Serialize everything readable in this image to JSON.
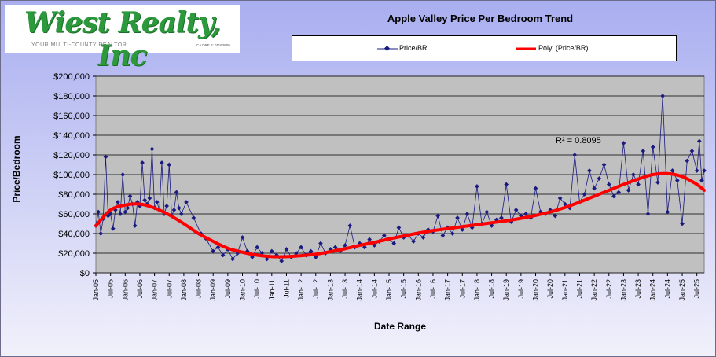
{
  "logo": {
    "name": "Wiest Realty, Inc",
    "tagline": "YOUR MULTI-COUNTY REALTOR",
    "license": "CA DRE #: 01183800"
  },
  "chart_data": {
    "type": "scatter",
    "title": "Apple Valley Price Per Bedroom Trend",
    "xlabel": "Date Range",
    "ylabel": "Price/Bedroom",
    "ylim": [
      0,
      200000
    ],
    "xlim": [
      "2005-01",
      "2025-10"
    ],
    "y_tick_labels": [
      "$0",
      "$20,000",
      "$40,000",
      "$60,000",
      "$80,000",
      "$100,000",
      "$120,000",
      "$140,000",
      "$160,000",
      "$180,000",
      "$200,000"
    ],
    "x_tick_labels": [
      "Jan-05",
      "Jul-05",
      "Jan-06",
      "Jul-06",
      "Jan-07",
      "Jul-07",
      "Jan-08",
      "Jul-08",
      "Jan-09",
      "Jul-09",
      "Jan-10",
      "Jul-10",
      "Jan-11",
      "Jul-11",
      "Jan-12",
      "Jul-12",
      "Jan-13",
      "Jul-13",
      "Jan-14",
      "Jul-14",
      "Jan-15",
      "Jul-15",
      "Jan-16",
      "Jul-16",
      "Jan-17",
      "Jul-17",
      "Jan-18",
      "Jul-18",
      "Jan-19",
      "Jul-19",
      "Jan-20",
      "Jul-20",
      "Jan-21",
      "Jul-21",
      "Jan-22",
      "Jul-22",
      "Jan-23",
      "Jul-23",
      "Jan-24",
      "Jul-24",
      "Jan-25",
      "Jul-25"
    ],
    "grid": "horizontal",
    "legend_position": "top",
    "annotation": "R² = 0.8095",
    "series": [
      {
        "name": "Price/BR",
        "color": "#1a1a80",
        "marker": "diamond",
        "points": [
          [
            "2005-01",
            48000
          ],
          [
            "2005-02",
            62000
          ],
          [
            "2005-03",
            40000
          ],
          [
            "2005-04",
            55000
          ],
          [
            "2005-05",
            118000
          ],
          [
            "2005-06",
            58000
          ],
          [
            "2005-07",
            60000
          ],
          [
            "2005-08",
            45000
          ],
          [
            "2005-09",
            64000
          ],
          [
            "2005-10",
            72000
          ],
          [
            "2005-11",
            60000
          ],
          [
            "2005-12",
            100000
          ],
          [
            "2006-01",
            62000
          ],
          [
            "2006-02",
            66000
          ],
          [
            "2006-03",
            78000
          ],
          [
            "2006-04",
            70000
          ],
          [
            "2006-05",
            48000
          ],
          [
            "2006-06",
            72000
          ],
          [
            "2006-07",
            68000
          ],
          [
            "2006-08",
            112000
          ],
          [
            "2006-09",
            74000
          ],
          [
            "2006-10",
            70000
          ],
          [
            "2006-11",
            76000
          ],
          [
            "2006-12",
            126000
          ],
          [
            "2007-01",
            66000
          ],
          [
            "2007-02",
            72000
          ],
          [
            "2007-03",
            64000
          ],
          [
            "2007-04",
            112000
          ],
          [
            "2007-05",
            60000
          ],
          [
            "2007-06",
            68000
          ],
          [
            "2007-07",
            110000
          ],
          [
            "2007-08",
            58000
          ],
          [
            "2007-09",
            64000
          ],
          [
            "2007-10",
            82000
          ],
          [
            "2007-11",
            66000
          ],
          [
            "2007-12",
            60000
          ],
          [
            "2008-02",
            72000
          ],
          [
            "2008-05",
            56000
          ],
          [
            "2008-08",
            40000
          ],
          [
            "2008-10",
            35000
          ],
          [
            "2009-01",
            22000
          ],
          [
            "2009-03",
            26000
          ],
          [
            "2009-05",
            18000
          ],
          [
            "2009-07",
            24000
          ],
          [
            "2009-09",
            14000
          ],
          [
            "2009-11",
            20000
          ],
          [
            "2010-01",
            36000
          ],
          [
            "2010-03",
            22000
          ],
          [
            "2010-05",
            16000
          ],
          [
            "2010-07",
            26000
          ],
          [
            "2010-09",
            20000
          ],
          [
            "2010-11",
            14000
          ],
          [
            "2011-01",
            22000
          ],
          [
            "2011-03",
            18000
          ],
          [
            "2011-05",
            12000
          ],
          [
            "2011-07",
            24000
          ],
          [
            "2011-09",
            16000
          ],
          [
            "2011-11",
            20000
          ],
          [
            "2012-01",
            26000
          ],
          [
            "2012-03",
            18000
          ],
          [
            "2012-05",
            22000
          ],
          [
            "2012-07",
            16000
          ],
          [
            "2012-09",
            30000
          ],
          [
            "2012-11",
            20000
          ],
          [
            "2013-01",
            24000
          ],
          [
            "2013-03",
            26000
          ],
          [
            "2013-05",
            22000
          ],
          [
            "2013-07",
            28000
          ],
          [
            "2013-09",
            48000
          ],
          [
            "2013-11",
            26000
          ],
          [
            "2014-01",
            30000
          ],
          [
            "2014-03",
            26000
          ],
          [
            "2014-05",
            34000
          ],
          [
            "2014-07",
            28000
          ],
          [
            "2014-09",
            32000
          ],
          [
            "2014-11",
            38000
          ],
          [
            "2015-01",
            34000
          ],
          [
            "2015-03",
            30000
          ],
          [
            "2015-05",
            46000
          ],
          [
            "2015-07",
            36000
          ],
          [
            "2015-09",
            38000
          ],
          [
            "2015-11",
            32000
          ],
          [
            "2016-01",
            40000
          ],
          [
            "2016-03",
            36000
          ],
          [
            "2016-05",
            44000
          ],
          [
            "2016-07",
            42000
          ],
          [
            "2016-09",
            58000
          ],
          [
            "2016-11",
            38000
          ],
          [
            "2017-01",
            46000
          ],
          [
            "2017-03",
            40000
          ],
          [
            "2017-05",
            56000
          ],
          [
            "2017-07",
            44000
          ],
          [
            "2017-09",
            60000
          ],
          [
            "2017-11",
            46000
          ],
          [
            "2018-01",
            88000
          ],
          [
            "2018-03",
            50000
          ],
          [
            "2018-05",
            62000
          ],
          [
            "2018-07",
            48000
          ],
          [
            "2018-09",
            54000
          ],
          [
            "2018-11",
            56000
          ],
          [
            "2019-01",
            90000
          ],
          [
            "2019-03",
            52000
          ],
          [
            "2019-05",
            64000
          ],
          [
            "2019-07",
            58000
          ],
          [
            "2019-09",
            60000
          ],
          [
            "2019-11",
            56000
          ],
          [
            "2020-01",
            86000
          ],
          [
            "2020-03",
            62000
          ],
          [
            "2020-05",
            60000
          ],
          [
            "2020-07",
            64000
          ],
          [
            "2020-09",
            58000
          ],
          [
            "2020-11",
            76000
          ],
          [
            "2021-01",
            70000
          ],
          [
            "2021-03",
            66000
          ],
          [
            "2021-05",
            120000
          ],
          [
            "2021-07",
            72000
          ],
          [
            "2021-09",
            80000
          ],
          [
            "2021-11",
            104000
          ],
          [
            "2022-01",
            86000
          ],
          [
            "2022-03",
            96000
          ],
          [
            "2022-05",
            110000
          ],
          [
            "2022-07",
            90000
          ],
          [
            "2022-09",
            78000
          ],
          [
            "2022-11",
            82000
          ],
          [
            "2023-01",
            132000
          ],
          [
            "2023-03",
            84000
          ],
          [
            "2023-05",
            100000
          ],
          [
            "2023-07",
            90000
          ],
          [
            "2023-09",
            124000
          ],
          [
            "2023-11",
            60000
          ],
          [
            "2024-01",
            128000
          ],
          [
            "2024-03",
            92000
          ],
          [
            "2024-05",
            180000
          ],
          [
            "2024-07",
            62000
          ],
          [
            "2024-09",
            104000
          ],
          [
            "2024-11",
            94000
          ],
          [
            "2025-01",
            50000
          ],
          [
            "2025-03",
            114000
          ],
          [
            "2025-05",
            124000
          ],
          [
            "2025-07",
            104000
          ],
          [
            "2025-08",
            134000
          ],
          [
            "2025-09",
            94000
          ],
          [
            "2025-10",
            104000
          ]
        ]
      },
      {
        "name": "Poly. (Price/BR)",
        "color": "#ff0000",
        "type": "line",
        "points": [
          [
            "2005-01",
            48000
          ],
          [
            "2005-07",
            64000
          ],
          [
            "2006-01",
            69000
          ],
          [
            "2006-07",
            70000
          ],
          [
            "2007-01",
            66000
          ],
          [
            "2007-07",
            59000
          ],
          [
            "2008-01",
            50000
          ],
          [
            "2008-07",
            40000
          ],
          [
            "2009-01",
            32000
          ],
          [
            "2009-07",
            25000
          ],
          [
            "2010-01",
            21000
          ],
          [
            "2010-07",
            18000
          ],
          [
            "2011-01",
            16500
          ],
          [
            "2011-07",
            16500
          ],
          [
            "2012-01",
            17500
          ],
          [
            "2012-07",
            19000
          ],
          [
            "2013-01",
            21500
          ],
          [
            "2013-07",
            24500
          ],
          [
            "2014-01",
            28000
          ],
          [
            "2014-07",
            31000
          ],
          [
            "2015-01",
            34500
          ],
          [
            "2015-07",
            37500
          ],
          [
            "2016-01",
            40500
          ],
          [
            "2016-07",
            43000
          ],
          [
            "2017-01",
            45000
          ],
          [
            "2017-07",
            47000
          ],
          [
            "2018-01",
            49000
          ],
          [
            "2018-07",
            51000
          ],
          [
            "2019-01",
            53000
          ],
          [
            "2019-07",
            55500
          ],
          [
            "2020-01",
            58500
          ],
          [
            "2020-07",
            62000
          ],
          [
            "2021-01",
            66500
          ],
          [
            "2021-07",
            72000
          ],
          [
            "2022-01",
            78000
          ],
          [
            "2022-07",
            84000
          ],
          [
            "2023-01",
            90000
          ],
          [
            "2023-07",
            95500
          ],
          [
            "2024-01",
            100000
          ],
          [
            "2024-07",
            101000
          ],
          [
            "2025-01",
            98000
          ],
          [
            "2025-07",
            90000
          ],
          [
            "2025-10",
            84000
          ]
        ]
      }
    ]
  }
}
